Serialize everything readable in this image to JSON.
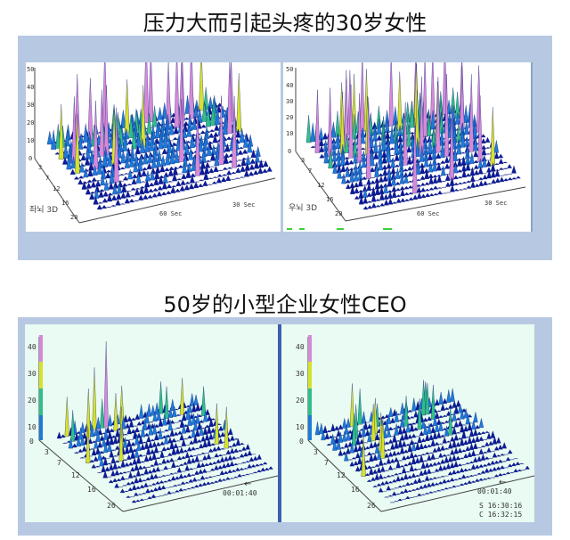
{
  "section1": {
    "title": "压力大而引起头疼的30岁女性",
    "left_panel": {
      "y_ticks": [
        "50",
        "40",
        "30",
        "20",
        "10",
        "0"
      ],
      "depth_ticks": [
        "3",
        "7",
        "12",
        "16",
        "20"
      ],
      "time_labels": [
        "60 Sec",
        "30 Sec"
      ],
      "corner_label": "좌뇌 3D"
    },
    "right_panel": {
      "y_ticks": [
        "50",
        "40",
        "30",
        "20",
        "10",
        "0"
      ],
      "depth_ticks": [
        "3",
        "7",
        "12",
        "16",
        "20"
      ],
      "time_labels": [
        "60 Sec",
        "30 Sec"
      ],
      "corner_label": "우뇌 3D"
    }
  },
  "section2": {
    "title": "50岁的小型企业女性CEO",
    "left_panel": {
      "y_ticks": [
        "40",
        "30",
        "20",
        "10",
        "0"
      ],
      "depth_ticks": [
        "3",
        "7",
        "12",
        "16",
        "26"
      ],
      "time_label": "00:01:40"
    },
    "right_panel": {
      "y_ticks": [
        "40",
        "30",
        "20",
        "10",
        "0"
      ],
      "depth_ticks": [
        "3",
        "7",
        "12",
        "16",
        "26"
      ],
      "time_label": "00:01:40",
      "start_time": "S 16:30:16",
      "end_time": "C 16:32:15"
    }
  },
  "colors": {
    "frame": "#b7c9e2",
    "surface_low": "#0b1a9a",
    "surface_mid": "#1e7ad8",
    "surface_green": "#2fbf8a",
    "surface_yellow": "#d6e22a",
    "surface_peak": "#d58ad8",
    "top_bg": "#ffffff",
    "bottom_bg": "#e9fbf2"
  }
}
